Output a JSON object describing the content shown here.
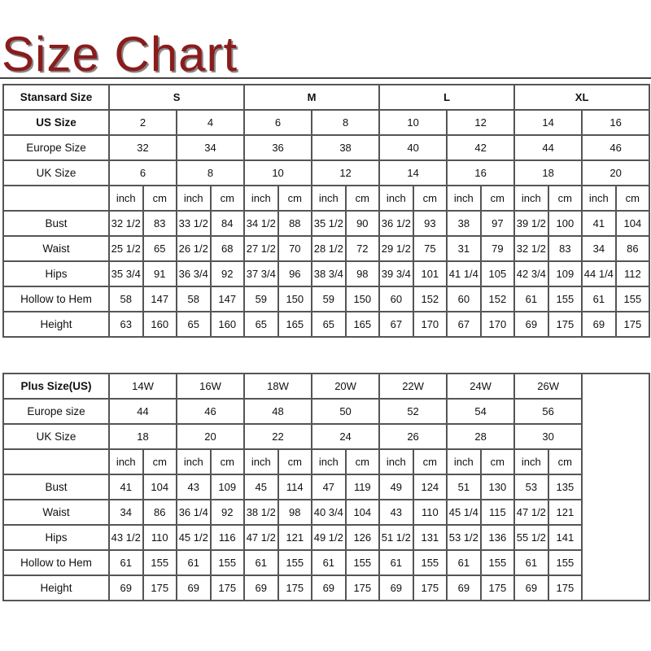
{
  "title": "Size Chart",
  "standard": {
    "header_label": "Stansard Size",
    "groups": [
      "S",
      "M",
      "L",
      "XL"
    ],
    "us_label": "US Size",
    "us_sizes": [
      "2",
      "4",
      "6",
      "8",
      "10",
      "12",
      "14",
      "16"
    ],
    "europe_label": "Europe Size",
    "europe_sizes": [
      "32",
      "34",
      "36",
      "38",
      "40",
      "42",
      "44",
      "46"
    ],
    "uk_label": "UK Size",
    "uk_sizes": [
      "6",
      "8",
      "10",
      "12",
      "14",
      "16",
      "18",
      "20"
    ],
    "unit_labels": [
      "inch",
      "cm"
    ],
    "measurements": [
      {
        "label": "Bust",
        "values": [
          "32 1/2",
          "83",
          "33 1/2",
          "84",
          "34 1/2",
          "88",
          "35 1/2",
          "90",
          "36 1/2",
          "93",
          "38",
          "97",
          "39 1/2",
          "100",
          "41",
          "104"
        ]
      },
      {
        "label": "Waist",
        "values": [
          "25 1/2",
          "65",
          "26 1/2",
          "68",
          "27 1/2",
          "70",
          "28 1/2",
          "72",
          "29 1/2",
          "75",
          "31",
          "79",
          "32 1/2",
          "83",
          "34",
          "86"
        ]
      },
      {
        "label": "Hips",
        "values": [
          "35 3/4",
          "91",
          "36 3/4",
          "92",
          "37 3/4",
          "96",
          "38 3/4",
          "98",
          "39 3/4",
          "101",
          "41 1/4",
          "105",
          "42 3/4",
          "109",
          "44 1/4",
          "112"
        ]
      },
      {
        "label": "Hollow to Hem",
        "values": [
          "58",
          "147",
          "58",
          "147",
          "59",
          "150",
          "59",
          "150",
          "60",
          "152",
          "60",
          "152",
          "61",
          "155",
          "61",
          "155"
        ]
      },
      {
        "label": "Height",
        "values": [
          "63",
          "160",
          "65",
          "160",
          "65",
          "165",
          "65",
          "165",
          "67",
          "170",
          "67",
          "170",
          "69",
          "175",
          "69",
          "175"
        ]
      }
    ]
  },
  "plus": {
    "header_label": "Plus Size(US)",
    "us_sizes": [
      "14W",
      "16W",
      "18W",
      "20W",
      "22W",
      "24W",
      "26W"
    ],
    "europe_label": "Europe size",
    "europe_sizes": [
      "44",
      "46",
      "48",
      "50",
      "52",
      "54",
      "56"
    ],
    "uk_label": "UK Size",
    "uk_sizes": [
      "18",
      "20",
      "22",
      "24",
      "26",
      "28",
      "30"
    ],
    "unit_labels": [
      "inch",
      "cm"
    ],
    "measurements": [
      {
        "label": "Bust",
        "values": [
          "41",
          "104",
          "43",
          "109",
          "45",
          "114",
          "47",
          "119",
          "49",
          "124",
          "51",
          "130",
          "53",
          "135"
        ]
      },
      {
        "label": "Waist",
        "values": [
          "34",
          "86",
          "36 1/4",
          "92",
          "38 1/2",
          "98",
          "40 3/4",
          "104",
          "43",
          "110",
          "45 1/4",
          "115",
          "47 1/2",
          "121"
        ]
      },
      {
        "label": "Hips",
        "values": [
          "43 1/2",
          "110",
          "45 1/2",
          "116",
          "47 1/2",
          "121",
          "49 1/2",
          "126",
          "51 1/2",
          "131",
          "53 1/2",
          "136",
          "55 1/2",
          "141"
        ]
      },
      {
        "label": "Hollow to Hem",
        "values": [
          "61",
          "155",
          "61",
          "155",
          "61",
          "155",
          "61",
          "155",
          "61",
          "155",
          "61",
          "155",
          "61",
          "155"
        ]
      },
      {
        "label": "Height",
        "values": [
          "69",
          "175",
          "69",
          "175",
          "69",
          "175",
          "69",
          "175",
          "69",
          "175",
          "69",
          "175",
          "69",
          "175"
        ]
      }
    ]
  }
}
